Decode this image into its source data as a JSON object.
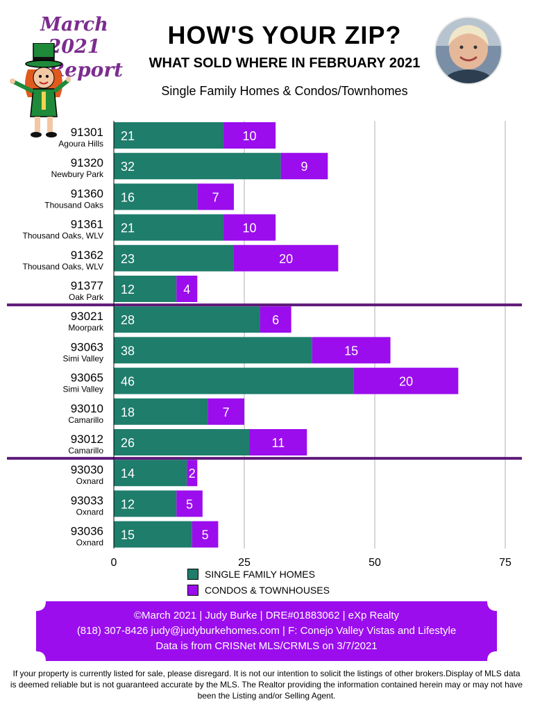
{
  "header": {
    "badge_line1": "March 2021",
    "badge_line2": "Report",
    "title": "HOW'S YOUR ZIP?",
    "subtitle": "WHAT SOLD WHERE IN FEBRUARY 2021",
    "subtitle2": "Single Family Homes & Condos/Townhomes"
  },
  "colors": {
    "single_family": "#1e7d6b",
    "condos": "#9b0ded",
    "divider": "#5e1a7a",
    "footer_bg": "#9b0ded",
    "gridline": "#c8c8c8"
  },
  "chart_data": {
    "type": "bar",
    "orientation": "horizontal",
    "stacked": true,
    "categories": [
      "91301",
      "91320",
      "91360",
      "91361",
      "91362",
      "91377",
      "93021",
      "93063",
      "93065",
      "93010",
      "93012",
      "93030",
      "93033",
      "93036"
    ],
    "category_sublabels": [
      "Agoura Hills",
      "Newbury Park",
      "Thousand Oaks",
      "Thousand Oaks, WLV",
      "Thousand Oaks, WLV",
      "Oak Park",
      "Moorpark",
      "Simi Valley",
      "Simi Valley",
      "Camarillo",
      "Camarillo",
      "Oxnard",
      "Oxnard",
      "Oxnard"
    ],
    "groups": [
      [
        0,
        5
      ],
      [
        6,
        10
      ],
      [
        11,
        13
      ]
    ],
    "series": [
      {
        "name": "SINGLE FAMILY HOMES",
        "values": [
          21,
          32,
          16,
          21,
          23,
          12,
          28,
          38,
          46,
          18,
          26,
          14,
          12,
          15
        ]
      },
      {
        "name": "CONDOS & TOWNHOUSES",
        "values": [
          10,
          9,
          7,
          10,
          20,
          4,
          6,
          15,
          20,
          7,
          11,
          2,
          5,
          5
        ]
      }
    ],
    "xlim": [
      0,
      75
    ],
    "xticks": [
      "0",
      "25",
      "50",
      "75"
    ],
    "grid": true,
    "legend_position": "bottom"
  },
  "footer": {
    "line1": "©March 2021  |  Judy Burke  |  DRE#01883062  |  eXp Realty",
    "line2": "(818) 307-8426  judy@judyburkehomes.com | F: Conejo Valley Vistas and Lifestyle",
    "line3": "Data is from CRISNet MLS/CRMLS on 3/7/2021"
  },
  "disclaimer": "If your property is currently listed for sale, please disregard. It is not our intention to solicit the listings of other brokers.Display of MLS data is deemed reliable but is not guaranteed accurate by the MLS. The Realtor providing the information contained herein may or may not have been the Listing and/or Selling Agent."
}
